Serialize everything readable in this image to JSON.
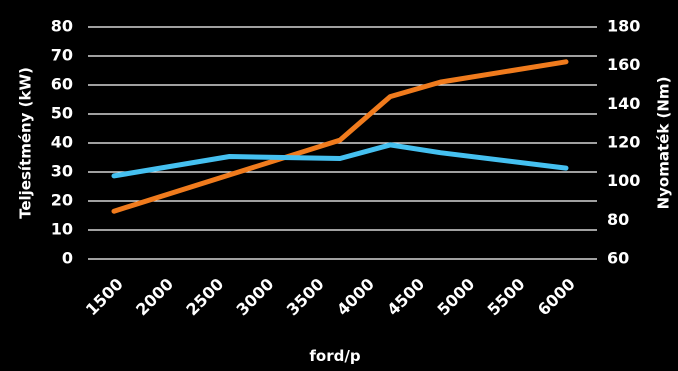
{
  "chart_data": {
    "type": "line",
    "x_label": "ford/p",
    "y_left_label": "Teljesítmény (kW)",
    "y_right_label": "Nyomaték (Nm)",
    "x_ticks": [
      "1500",
      "2000",
      "2500",
      "3000",
      "3500",
      "4000",
      "4500",
      "5000",
      "5500",
      "6000"
    ],
    "y_left_ticks": [
      "0",
      "10",
      "20",
      "30",
      "40",
      "50",
      "60",
      "70",
      "80"
    ],
    "y_right_ticks": [
      "60",
      "80",
      "100",
      "120",
      "140",
      "160",
      "180"
    ],
    "x_range": [
      1500,
      6000
    ],
    "y_left_range": [
      0,
      80
    ],
    "y_right_range": [
      60,
      180
    ],
    "grid": true,
    "series": [
      {
        "axis": "left",
        "color": "#f07b1d",
        "points": [
          [
            1500,
            16.5
          ],
          [
            2650,
            29
          ],
          [
            3750,
            41
          ],
          [
            4250,
            56
          ],
          [
            4750,
            61
          ],
          [
            6000,
            68
          ]
        ]
      },
      {
        "axis": "right",
        "color": "#45c0f0",
        "points": [
          [
            1500,
            103
          ],
          [
            2650,
            113
          ],
          [
            3750,
            112
          ],
          [
            4250,
            119
          ],
          [
            4750,
            115
          ],
          [
            6000,
            107
          ]
        ]
      }
    ]
  }
}
